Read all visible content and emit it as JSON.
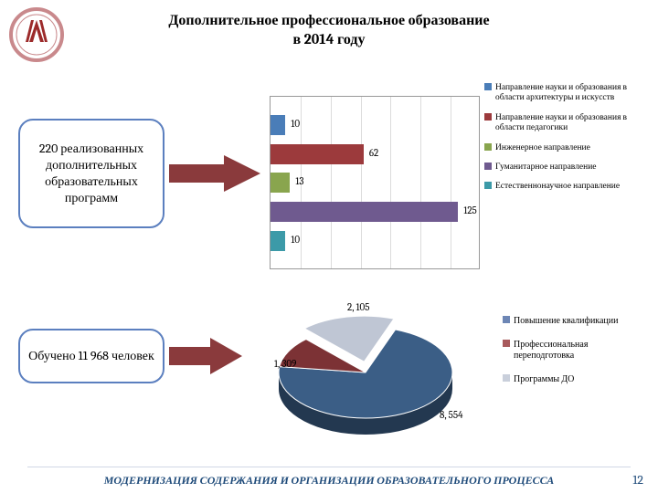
{
  "title_line1": "Дополнительное профессиональное образование",
  "title_line2": "в 2014 году",
  "callout1": "220 реализованных дополнительных образовательных программ",
  "callout2": "Обучено 11 968 человек",
  "footer": "МОДЕРНИЗАЦИЯ СОДЕРЖАНИЯ И ОРГАНИЗАЦИИ ОБРАЗОВАТЕЛЬНОГО ПРОЦЕССА",
  "page_number": "12",
  "bar_chart": {
    "type": "bar-horizontal",
    "xmax": 140,
    "grid_step": 20,
    "grid_color": "#dcdcdc",
    "border_color": "#999999",
    "bars": [
      {
        "value": 10,
        "label": "10",
        "color": "#4a7db8"
      },
      {
        "value": 62,
        "label": "62",
        "color": "#9c3a3c"
      },
      {
        "value": 13,
        "label": "13",
        "color": "#89a54e"
      },
      {
        "value": 125,
        "label": "125",
        "color": "#6f5a8f"
      },
      {
        "value": 10,
        "label": "10",
        "color": "#3c9aa8"
      }
    ],
    "legend": [
      {
        "color": "#4a7db8",
        "text": "Направление науки и образования в области архитектуры и искусств"
      },
      {
        "color": "#9c3a3c",
        "text": "Направление науки и образования в области педагогики"
      },
      {
        "color": "#89a54e",
        "text": "Инженерное направление"
      },
      {
        "color": "#6f5a8f",
        "text": "Гуманитарное направление"
      },
      {
        "color": "#3c9aa8",
        "text": "Естественнонаучное направление"
      }
    ]
  },
  "pie_chart": {
    "type": "pie-3d",
    "slices": [
      {
        "value": 8554,
        "label": "8, 554",
        "color": "#3b5e86",
        "legend": "Повышение квалификации"
      },
      {
        "value": 1309,
        "label": "1, 309",
        "color": "#7c3235",
        "legend": "Профессиональная переподготовка"
      },
      {
        "value": 2105,
        "label": "2, 105",
        "color": "#bfc6d4",
        "legend": "Программы ДО"
      }
    ],
    "legend_swatches": [
      "#6d86b5",
      "#a85a5c",
      "#c9cfdb"
    ]
  },
  "arrow_color": "#8a3a3c",
  "logo": {
    "ring_color": "#c9898c",
    "emblem_color": "#9c2a2a"
  }
}
